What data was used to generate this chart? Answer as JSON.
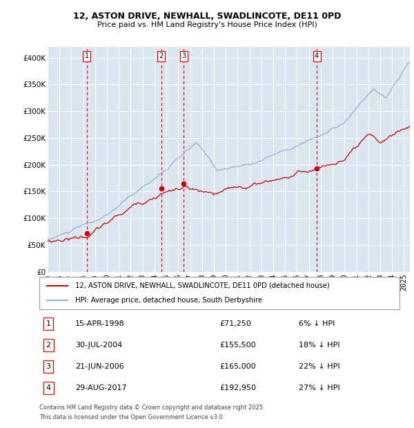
{
  "title": "12, ASTON DRIVE, NEWHALL, SWADLINCOTE, DE11 0PD",
  "subtitle": "Price paid vs. HM Land Registry's House Price Index (HPI)",
  "legend_line1": "12, ASTON DRIVE, NEWHALL, SWADLINCOTE, DE11 0PD (detached house)",
  "legend_line2": "HPI: Average price, detached house, South Derbyshire",
  "footer1": "Contains HM Land Registry data © Crown copyright and database right 2025.",
  "footer2": "This data is licensed under the Open Government Licence v3.0.",
  "transactions": [
    {
      "num": 1,
      "date": "15-APR-1998",
      "price": 71250,
      "hpi_diff": "6% ↓ HPI"
    },
    {
      "num": 2,
      "date": "30-JUL-2004",
      "price": 155500,
      "hpi_diff": "18% ↓ HPI"
    },
    {
      "num": 3,
      "date": "21-JUN-2006",
      "price": 165000,
      "hpi_diff": "22% ↓ HPI"
    },
    {
      "num": 4,
      "date": "29-AUG-2017",
      "price": 192950,
      "hpi_diff": "27% ↓ HPI"
    }
  ],
  "transaction_dates_decimal": [
    1998.288,
    2004.578,
    2006.472,
    2017.661
  ],
  "hpi_color": "#8ab4d8",
  "price_color": "#cc0000",
  "background_color": "#dce6f1",
  "ylim": [
    0,
    420000
  ],
  "yticks": [
    0,
    50000,
    100000,
    150000,
    200000,
    250000,
    300000,
    350000,
    400000
  ],
  "ytick_labels": [
    "£0",
    "£50K",
    "£100K",
    "£150K",
    "£200K",
    "£250K",
    "£300K",
    "£350K",
    "£400K"
  ],
  "xmin_year": 1995.0,
  "xmax_year": 2025.5,
  "xtick_years": [
    1995,
    1996,
    1997,
    1998,
    1999,
    2000,
    2001,
    2002,
    2003,
    2004,
    2005,
    2006,
    2007,
    2008,
    2009,
    2010,
    2011,
    2012,
    2013,
    2014,
    2015,
    2016,
    2017,
    2018,
    2019,
    2020,
    2021,
    2022,
    2023,
    2024,
    2025
  ]
}
